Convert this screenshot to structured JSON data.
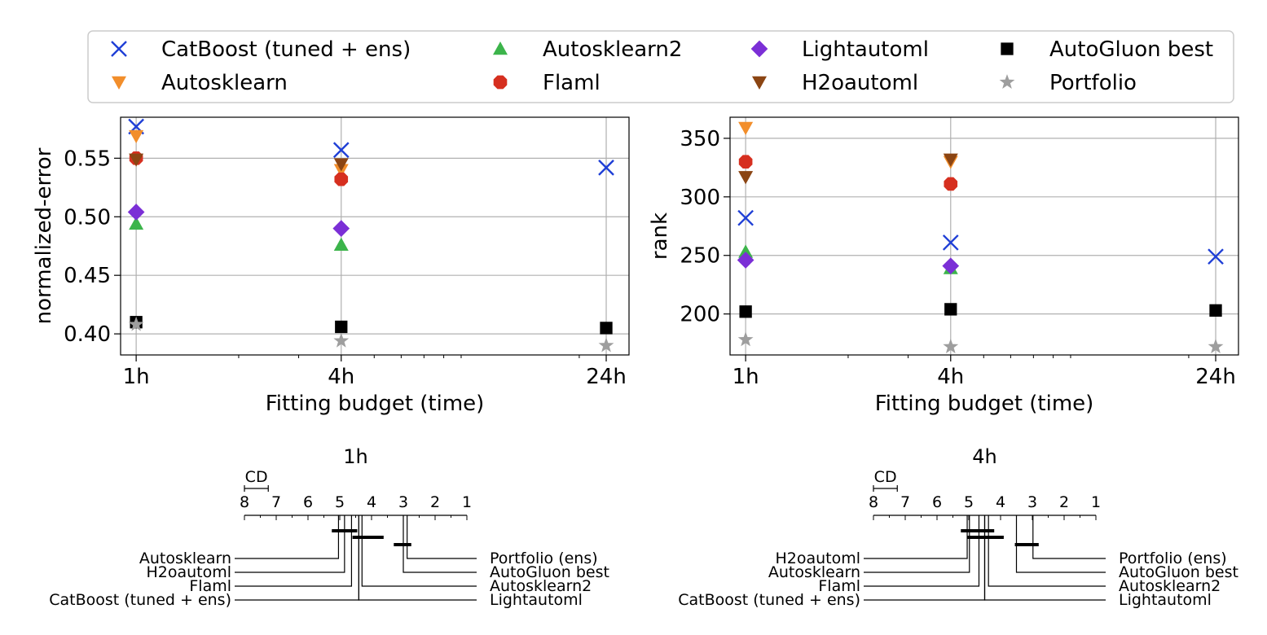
{
  "legend": {
    "entries": [
      {
        "name": "CatBoost (tuned + ens)",
        "marker": "x",
        "color": "#1f3fd6"
      },
      {
        "name": "Autosklearn",
        "marker": "tri-down",
        "color": "#f28e2b"
      },
      {
        "name": "Autosklearn2",
        "marker": "tri-up",
        "color": "#3cb44b"
      },
      {
        "name": "Flaml",
        "marker": "hexagon",
        "color": "#d62f1f"
      },
      {
        "name": "Lightautoml",
        "marker": "diamond",
        "color": "#7b2fd6"
      },
      {
        "name": "H2oautoml",
        "marker": "tri-down",
        "color": "#8b4513"
      },
      {
        "name": "AutoGluon best",
        "marker": "square",
        "color": "#000000"
      },
      {
        "name": "Portfolio",
        "marker": "star",
        "color": "#9e9e9e"
      }
    ]
  },
  "chart_data": [
    {
      "type": "scatter",
      "id": "left",
      "xscale": "log",
      "xlabel": "Fitting budget (time)",
      "ylabel": "normalized-error",
      "x_ticks": [
        "1h",
        "4h",
        "24h"
      ],
      "x_tick_values": [
        1,
        4,
        24
      ],
      "xlim": [
        0.9,
        28
      ],
      "ylim": [
        0.382,
        0.585
      ],
      "y_ticks": [
        "0.40",
        "0.45",
        "0.50",
        "0.55"
      ],
      "y_tick_values": [
        0.4,
        0.45,
        0.5,
        0.55
      ],
      "grid": true,
      "series": [
        {
          "name": "CatBoost (tuned + ens)",
          "x": [
            1,
            4,
            24
          ],
          "y": [
            0.577,
            0.557,
            0.542
          ]
        },
        {
          "name": "Autosklearn",
          "x": [
            1,
            4
          ],
          "y": [
            0.569,
            0.54
          ]
        },
        {
          "name": "Autosklearn2",
          "x": [
            1,
            4
          ],
          "y": [
            0.494,
            0.476
          ]
        },
        {
          "name": "Flaml",
          "x": [
            1,
            4
          ],
          "y": [
            0.55,
            0.532
          ]
        },
        {
          "name": "Lightautoml",
          "x": [
            1,
            4
          ],
          "y": [
            0.504,
            0.49
          ]
        },
        {
          "name": "H2oautoml",
          "x": [
            1,
            4
          ],
          "y": [
            0.549,
            0.545
          ]
        },
        {
          "name": "AutoGluon best",
          "x": [
            1,
            4,
            24
          ],
          "y": [
            0.41,
            0.406,
            0.405
          ]
        },
        {
          "name": "Portfolio",
          "x": [
            1,
            4,
            24
          ],
          "y": [
            0.408,
            0.394,
            0.39
          ]
        }
      ]
    },
    {
      "type": "scatter",
      "id": "right",
      "xscale": "log",
      "xlabel": "Fitting budget (time)",
      "ylabel": "rank",
      "x_ticks": [
        "1h",
        "4h",
        "24h"
      ],
      "x_tick_values": [
        1,
        4,
        24
      ],
      "xlim": [
        0.9,
        28
      ],
      "ylim": [
        165,
        368
      ],
      "y_ticks": [
        "200",
        "250",
        "300",
        "350"
      ],
      "y_tick_values": [
        200,
        250,
        300,
        350
      ],
      "grid": true,
      "series": [
        {
          "name": "CatBoost (tuned + ens)",
          "x": [
            1,
            4,
            24
          ],
          "y": [
            282,
            261,
            249
          ]
        },
        {
          "name": "Autosklearn",
          "x": [
            1,
            4
          ],
          "y": [
            359,
            330
          ]
        },
        {
          "name": "Autosklearn2",
          "x": [
            1,
            4
          ],
          "y": [
            253,
            239
          ]
        },
        {
          "name": "Flaml",
          "x": [
            1,
            4
          ],
          "y": [
            330,
            311
          ]
        },
        {
          "name": "Lightautoml",
          "x": [
            1,
            4
          ],
          "y": [
            246,
            241
          ]
        },
        {
          "name": "H2oautoml",
          "x": [
            1,
            4
          ],
          "y": [
            317,
            332
          ]
        },
        {
          "name": "AutoGluon best",
          "x": [
            1,
            4,
            24
          ],
          "y": [
            202,
            204,
            203
          ]
        },
        {
          "name": "Portfolio",
          "x": [
            1,
            4,
            24
          ],
          "y": [
            178,
            172,
            172
          ]
        }
      ]
    },
    {
      "type": "critical-difference",
      "id": "cd1h",
      "title": "1h",
      "cd_label": "CD",
      "cd_value": 0.75,
      "axis_min": 1,
      "axis_max": 8,
      "tick_labels": [
        "8",
        "7",
        "6",
        "5",
        "4",
        "3",
        "2",
        "1"
      ],
      "tick_values": [
        8,
        7,
        6,
        5,
        4,
        3,
        2,
        1
      ],
      "methods": [
        {
          "name": "Autosklearn",
          "rank": 5.04,
          "side": "left"
        },
        {
          "name": "H2oautoml",
          "rank": 4.85,
          "side": "left"
        },
        {
          "name": "Flaml",
          "rank": 4.63,
          "side": "left"
        },
        {
          "name": "CatBoost (tuned + ens)",
          "rank": 4.4,
          "side": "left"
        },
        {
          "name": "Portfolio (ens)",
          "rank": 2.88,
          "side": "right"
        },
        {
          "name": "AutoGluon best",
          "rank": 3.0,
          "side": "right"
        },
        {
          "name": "Autosklearn2",
          "rank": 4.3,
          "side": "right"
        },
        {
          "name": "Lightautoml",
          "rank": 4.4,
          "side": "right"
        }
      ],
      "cliques": [
        [
          5.25,
          4.45
        ],
        [
          4.6,
          3.62
        ],
        [
          3.3,
          2.75
        ]
      ]
    },
    {
      "type": "critical-difference",
      "id": "cd4h",
      "title": "4h",
      "cd_label": "CD",
      "cd_value": 0.75,
      "axis_min": 1,
      "axis_max": 8,
      "tick_labels": [
        "8",
        "7",
        "6",
        "5",
        "4",
        "3",
        "2",
        "1"
      ],
      "tick_values": [
        8,
        7,
        6,
        5,
        4,
        3,
        2,
        1
      ],
      "methods": [
        {
          "name": "H2oautoml",
          "rank": 5.05,
          "side": "left"
        },
        {
          "name": "Autosklearn",
          "rank": 4.98,
          "side": "left"
        },
        {
          "name": "Flaml",
          "rank": 4.68,
          "side": "left"
        },
        {
          "name": "CatBoost (tuned + ens)",
          "rank": 4.5,
          "side": "left"
        },
        {
          "name": "Portfolio (ens)",
          "rank": 2.98,
          "side": "right"
        },
        {
          "name": "AutoGluon best",
          "rank": 3.5,
          "side": "right"
        },
        {
          "name": "Autosklearn2",
          "rank": 4.38,
          "side": "right"
        },
        {
          "name": "Lightautoml",
          "rank": 4.5,
          "side": "right"
        }
      ],
      "cliques": [
        [
          5.25,
          4.2
        ],
        [
          5.05,
          3.9
        ],
        [
          3.55,
          2.8
        ]
      ]
    }
  ]
}
